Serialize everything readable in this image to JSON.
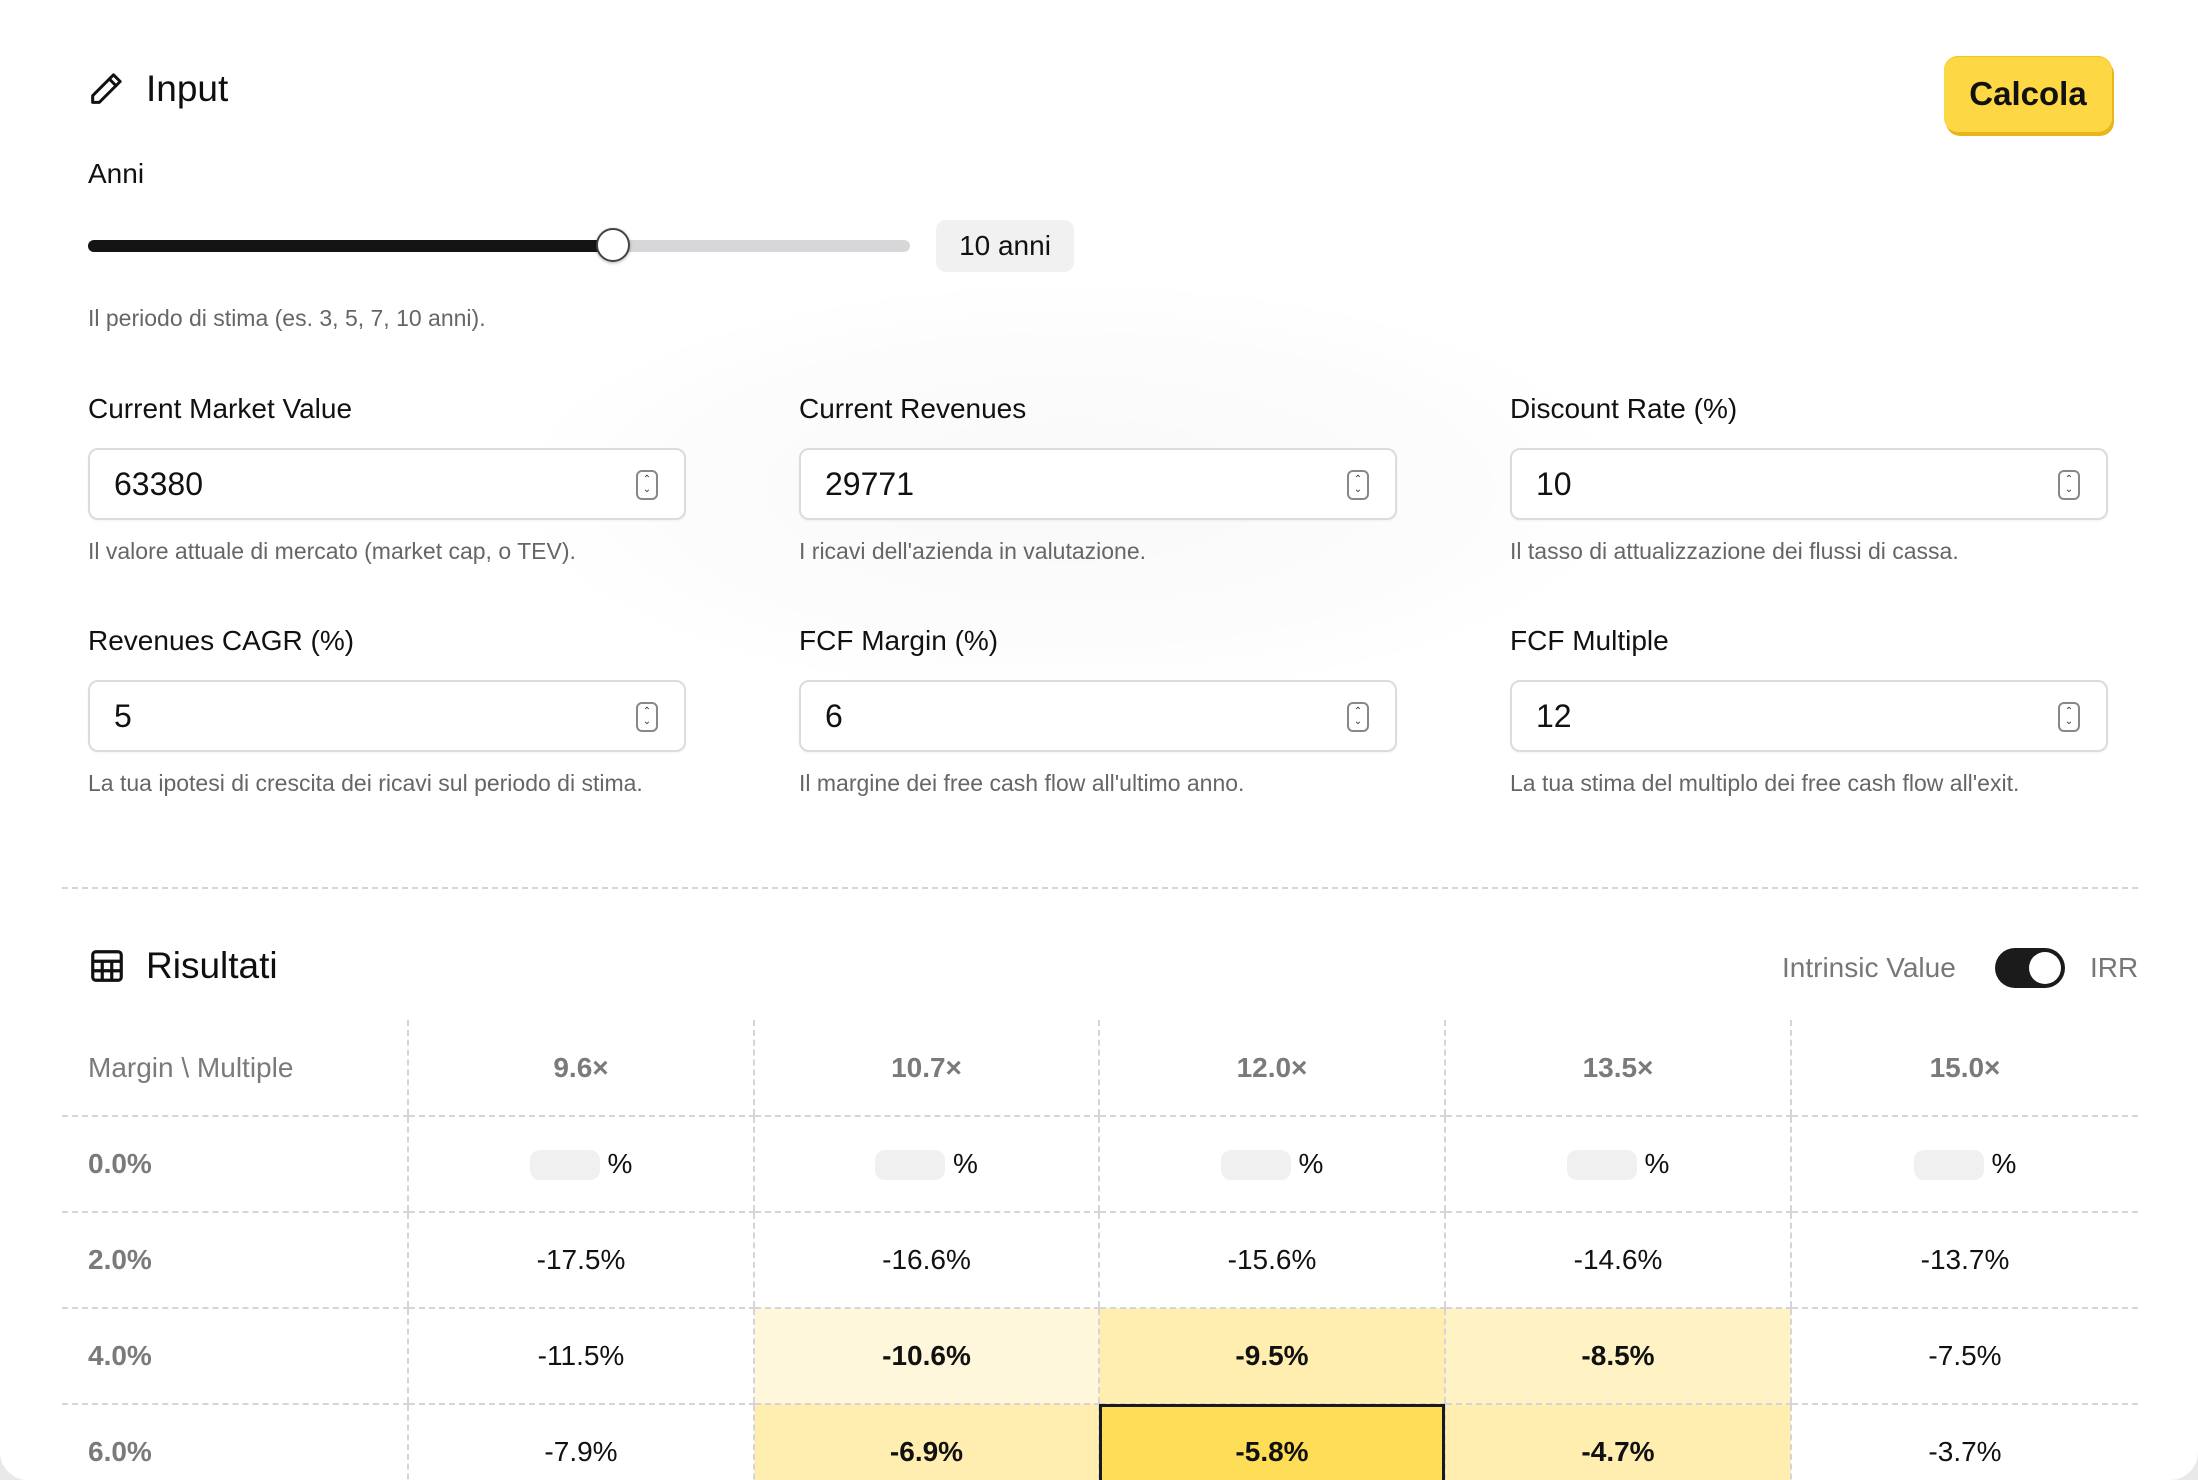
{
  "input_section": {
    "title": "Input",
    "calc_button": "Calcola",
    "years": {
      "label": "Anni",
      "value_text": "10 anni",
      "value": 10,
      "help": "Il periodo di stima (es. 3, 5, 7, 10 anni)."
    },
    "fields": [
      {
        "label": "Current Market Value",
        "value": "63380",
        "help": "Il valore attuale di mercato (market cap, o TEV)."
      },
      {
        "label": "Current Revenues",
        "value": "29771",
        "help": "I ricavi dell'azienda in valutazione."
      },
      {
        "label": "Discount Rate (%)",
        "value": "10",
        "help": "Il tasso di attualizzazione dei flussi di cassa."
      },
      {
        "label": "Revenues CAGR (%)",
        "value": "5",
        "help": "La tua ipotesi di crescita dei ricavi sul periodo di stima."
      },
      {
        "label": "FCF Margin (%)",
        "value": "6",
        "help": "Il margine dei free cash flow all'ultimo anno."
      },
      {
        "label": "FCF Multiple",
        "value": "12",
        "help": "La tua stima del multiplo dei free cash flow all'exit."
      }
    ]
  },
  "results_section": {
    "title": "Risultati",
    "toggle": {
      "left_label": "Intrinsic Value",
      "right_label": "IRR",
      "state": "IRR"
    },
    "table": {
      "corner": "Margin \\ Multiple",
      "columns": [
        "9.6×",
        "10.7×",
        "12.0×",
        "13.5×",
        "15.0×"
      ],
      "rows": [
        {
          "label": "0.0%",
          "cells": [
            "%",
            "%",
            "%",
            "%",
            "%"
          ]
        },
        {
          "label": "2.0%",
          "cells": [
            "-17.5%",
            "-16.6%",
            "-15.6%",
            "-14.6%",
            "-13.7%"
          ]
        },
        {
          "label": "4.0%",
          "cells": [
            "-11.5%",
            "-10.6%",
            "-9.5%",
            "-8.5%",
            "-7.5%"
          ]
        },
        {
          "label": "6.0%",
          "cells": [
            "-7.9%",
            "-6.9%",
            "-5.8%",
            "-4.7%",
            "-3.7%"
          ]
        }
      ]
    }
  },
  "colors": {
    "accent_button": "#fdd744",
    "heat_light": "#fff7db",
    "heat_medium": "#ffeeb0",
    "heat_strong": "#ffdd4f"
  }
}
